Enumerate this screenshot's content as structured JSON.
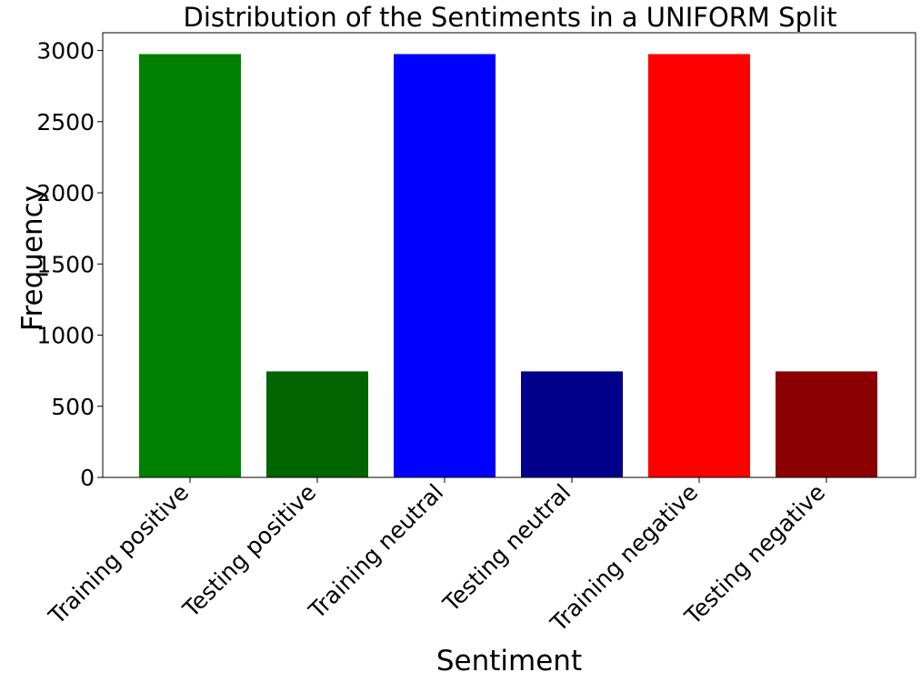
{
  "chart_data": {
    "type": "bar",
    "title": "Distribution of the Sentiments in a UNIFORM Split",
    "xlabel": "Sentiment",
    "ylabel": "Frequency",
    "categories": [
      "Training positive",
      "Testing positive",
      "Training neutral",
      "Testing neutral",
      "Training negative",
      "Testing negative"
    ],
    "values": [
      2975,
      745,
      2975,
      745,
      2975,
      745
    ],
    "colors": [
      "#008000",
      "#006400",
      "#0000ff",
      "#00008b",
      "#ff0000",
      "#8b0000"
    ],
    "ylim": [
      0,
      3125
    ],
    "yticks": [
      0,
      500,
      1000,
      1500,
      2000,
      2500,
      3000
    ],
    "grid": false,
    "legend": "none"
  }
}
